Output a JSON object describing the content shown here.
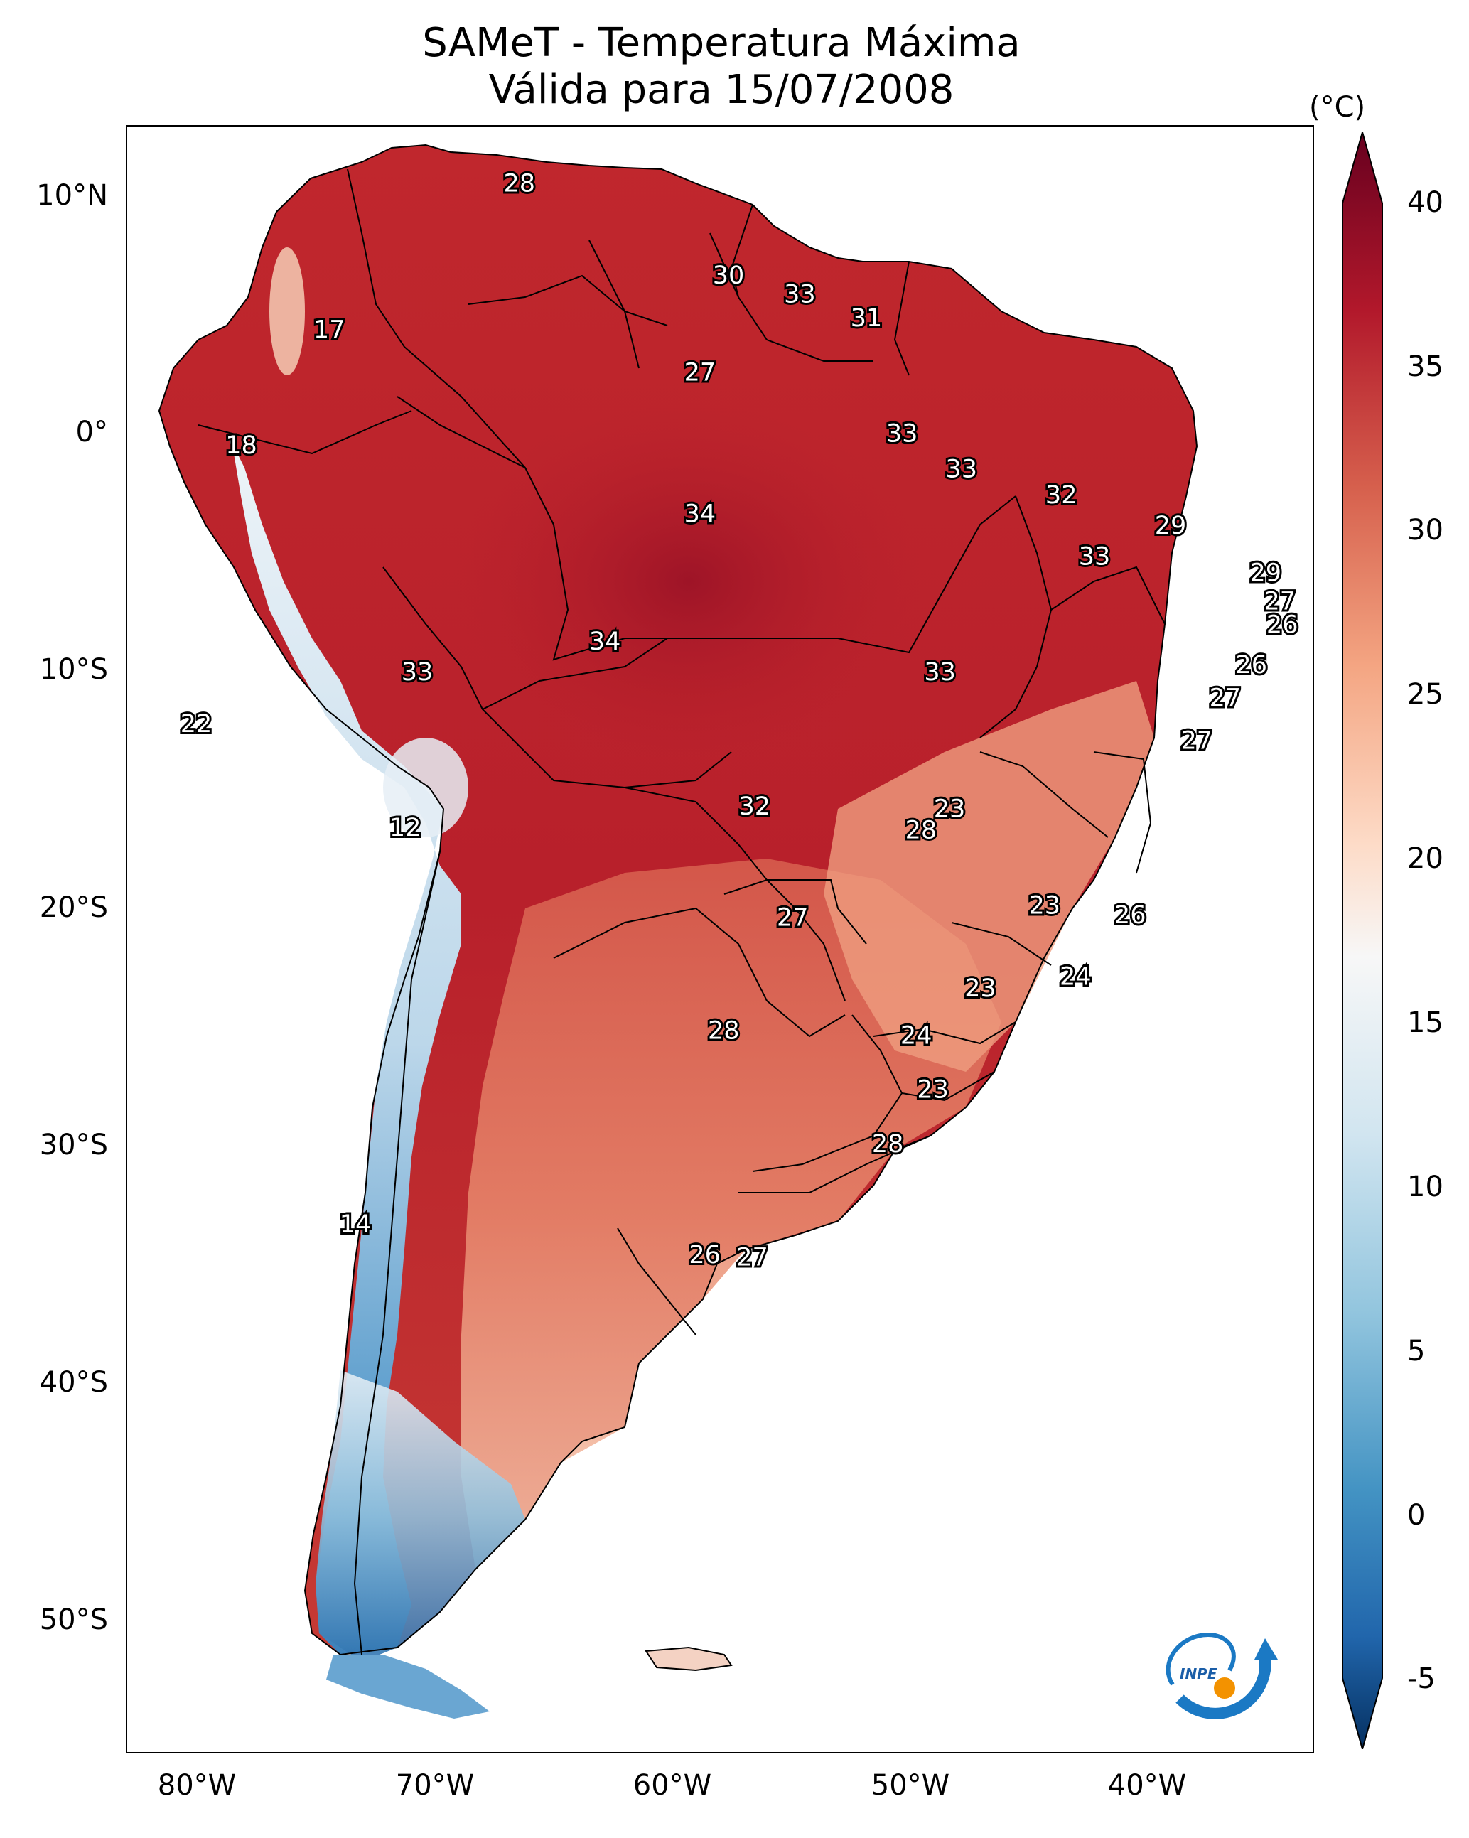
{
  "title": {
    "line1": "SAMeT - Temperatura Máxima",
    "line2": "Válida para 15/07/2008"
  },
  "map": {
    "lat_ticks": [
      "10°N",
      "0°",
      "10°S",
      "20°S",
      "30°S",
      "40°S",
      "50°S"
    ],
    "lon_ticks": [
      "80°W",
      "70°W",
      "60°W",
      "50°W",
      "40°W"
    ],
    "lon_range": [
      -83,
      -33
    ],
    "lat_range": [
      13,
      -56
    ],
    "value_labels": [
      {
        "text": "28",
        "lon": -66.5,
        "lat": 10.6
      },
      {
        "text": "30",
        "lon": -57.7,
        "lat": 6.7
      },
      {
        "text": "33",
        "lon": -54.7,
        "lat": 5.9
      },
      {
        "text": "31",
        "lon": -51.9,
        "lat": 4.9
      },
      {
        "text": "17",
        "lon": -74.5,
        "lat": 4.4
      },
      {
        "text": "27",
        "lon": -58.9,
        "lat": 2.6
      },
      {
        "text": "18",
        "lon": -78.2,
        "lat": -0.5
      },
      {
        "text": "33",
        "lon": -50.4,
        "lat": 0.0
      },
      {
        "text": "33",
        "lon": -47.9,
        "lat": -1.5
      },
      {
        "text": "34",
        "lon": -58.9,
        "lat": -3.4
      },
      {
        "text": "32",
        "lon": -43.7,
        "lat": -2.6
      },
      {
        "text": "29",
        "lon": -39.1,
        "lat": -3.9
      },
      {
        "text": "33",
        "lon": -42.3,
        "lat": -5.2
      },
      {
        "text": "29",
        "lon": -35.1,
        "lat": -5.9
      },
      {
        "text": "27",
        "lon": -34.5,
        "lat": -7.1
      },
      {
        "text": "26",
        "lon": -34.4,
        "lat": -8.1
      },
      {
        "text": "34",
        "lon": -62.9,
        "lat": -8.8
      },
      {
        "text": "26",
        "lon": -35.7,
        "lat": -9.8
      },
      {
        "text": "33",
        "lon": -70.8,
        "lat": -10.1
      },
      {
        "text": "33",
        "lon": -48.8,
        "lat": -10.1
      },
      {
        "text": "27",
        "lon": -36.8,
        "lat": -11.2
      },
      {
        "text": "22",
        "lon": -80.1,
        "lat": -12.3
      },
      {
        "text": "27",
        "lon": -38.0,
        "lat": -13.0
      },
      {
        "text": "32",
        "lon": -56.6,
        "lat": -15.8
      },
      {
        "text": "23",
        "lon": -48.4,
        "lat": -15.9
      },
      {
        "text": "12",
        "lon": -71.3,
        "lat": -16.7
      },
      {
        "text": "28",
        "lon": -49.6,
        "lat": -16.8
      },
      {
        "text": "27",
        "lon": -55.0,
        "lat": -20.5
      },
      {
        "text": "23",
        "lon": -44.4,
        "lat": -20.0
      },
      {
        "text": "26",
        "lon": -40.8,
        "lat": -20.4
      },
      {
        "text": "24",
        "lon": -43.1,
        "lat": -23.0
      },
      {
        "text": "23",
        "lon": -47.1,
        "lat": -23.5
      },
      {
        "text": "28",
        "lon": -57.9,
        "lat": -25.3
      },
      {
        "text": "24",
        "lon": -49.8,
        "lat": -25.5
      },
      {
        "text": "23",
        "lon": -49.1,
        "lat": -27.8
      },
      {
        "text": "28",
        "lon": -51.0,
        "lat": -30.1
      },
      {
        "text": "14",
        "lon": -73.4,
        "lat": -33.5
      },
      {
        "text": "26",
        "lon": -58.7,
        "lat": -34.8
      },
      {
        "text": "27",
        "lon": -56.7,
        "lat": -34.9
      }
    ]
  },
  "colorbar": {
    "unit": "(°C)",
    "ticks": [
      "40",
      "35",
      "30",
      "25",
      "20",
      "15",
      "10",
      "5",
      "0",
      "-5"
    ],
    "min": -5,
    "max": 40,
    "colors": {
      "v40": "#67001f",
      "v35": "#b2182b",
      "v30": "#d6604d",
      "v25": "#f4a582",
      "v20": "#fddbc7",
      "v17": "#f7f7f7",
      "v12": "#d1e5f0",
      "v7": "#92c5de",
      "v2": "#4393c3",
      "vneg3": "#2166ac",
      "vneg5": "#053061"
    }
  },
  "logo": {
    "text": "INPE"
  }
}
